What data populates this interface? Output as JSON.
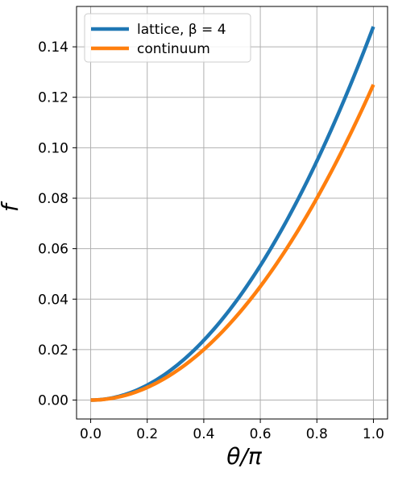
{
  "chart_data": {
    "type": "line",
    "title": "",
    "xlabel": "θ/π",
    "ylabel": "f",
    "xlim": [
      -0.05,
      1.05
    ],
    "ylim": [
      -0.0075,
      0.156
    ],
    "xticks": [
      0.0,
      0.2,
      0.4,
      0.6,
      0.8,
      1.0
    ],
    "yticks": [
      0.0,
      0.02,
      0.04,
      0.06,
      0.08,
      0.1,
      0.12,
      0.14
    ],
    "xtick_labels": [
      "0.0",
      "0.2",
      "0.4",
      "0.6",
      "0.8",
      "1.0"
    ],
    "ytick_labels": [
      "0.00",
      "0.02",
      "0.04",
      "0.06",
      "0.08",
      "0.10",
      "0.12",
      "0.14"
    ],
    "grid": true,
    "legend_position": "upper-left",
    "x": [
      0.0,
      0.1,
      0.2,
      0.3,
      0.4,
      0.5,
      0.6,
      0.7,
      0.8,
      0.9,
      1.0
    ],
    "series": [
      {
        "name": "lattice, β = 4",
        "color": "#1f77b4",
        "values": [
          0.0,
          0.00147,
          0.00589,
          0.01325,
          0.02356,
          0.03681,
          0.053,
          0.07215,
          0.09424,
          0.11926,
          0.148
        ]
      },
      {
        "name": "continuum",
        "color": "#ff7f0e",
        "values": [
          0.0,
          0.00125,
          0.005,
          0.01125,
          0.02,
          0.03125,
          0.045,
          0.06125,
          0.08,
          0.10125,
          0.125
        ]
      }
    ]
  }
}
